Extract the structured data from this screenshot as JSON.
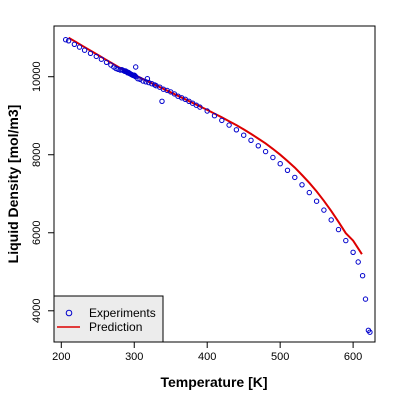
{
  "chart_data": {
    "type": "scatter",
    "xlabel": "Temperature [K]",
    "ylabel": "Liquid Density [mol/m3]",
    "xlim": [
      190,
      630
    ],
    "ylim": [
      3200,
      11300
    ],
    "x_ticks": [
      200,
      300,
      400,
      500,
      600
    ],
    "x_tick_labels": [
      "200",
      "300",
      "400",
      "500",
      "600"
    ],
    "y_ticks": [
      4000,
      6000,
      8000,
      10000
    ],
    "y_tick_labels": [
      "4000",
      "6000",
      "8000",
      "10000"
    ],
    "grid": false,
    "legend_position": "bottom-left",
    "legend": [
      {
        "label": "Experiments",
        "marker": "o",
        "color": "#0000cc"
      },
      {
        "label": "Prediction",
        "marker": "line",
        "color": "#dd0000"
      }
    ],
    "series": [
      {
        "name": "Experiments",
        "kind": "points",
        "color": "#0000cc",
        "points": [
          [
            206,
            10950
          ],
          [
            210,
            10920
          ],
          [
            218,
            10830
          ],
          [
            225,
            10760
          ],
          [
            232,
            10680
          ],
          [
            240,
            10600
          ],
          [
            248,
            10520
          ],
          [
            255,
            10450
          ],
          [
            262,
            10370
          ],
          [
            268,
            10300
          ],
          [
            272,
            10250
          ],
          [
            275,
            10210
          ],
          [
            278,
            10190
          ],
          [
            281,
            10170
          ],
          [
            283,
            10180
          ],
          [
            285,
            10160
          ],
          [
            287,
            10140
          ],
          [
            288,
            10150
          ],
          [
            289,
            10130
          ],
          [
            290,
            10120
          ],
          [
            291,
            10100
          ],
          [
            292,
            10110
          ],
          [
            293,
            10090
          ],
          [
            294,
            10080
          ],
          [
            295,
            10070
          ],
          [
            296,
            10060
          ],
          [
            297,
            10050
          ],
          [
            298,
            10040
          ],
          [
            299,
            10030
          ],
          [
            300,
            10040
          ],
          [
            301,
            10020
          ],
          [
            302,
            10000
          ],
          [
            302,
            10250
          ],
          [
            305,
            9950
          ],
          [
            308,
            9930
          ],
          [
            312,
            9890
          ],
          [
            316,
            9870
          ],
          [
            318,
            9950
          ],
          [
            320,
            9850
          ],
          [
            324,
            9820
          ],
          [
            328,
            9790
          ],
          [
            330,
            9770
          ],
          [
            335,
            9730
          ],
          [
            338,
            9370
          ],
          [
            340,
            9680
          ],
          [
            345,
            9650
          ],
          [
            350,
            9610
          ],
          [
            355,
            9560
          ],
          [
            360,
            9500
          ],
          [
            365,
            9460
          ],
          [
            370,
            9420
          ],
          [
            375,
            9370
          ],
          [
            380,
            9320
          ],
          [
            385,
            9270
          ],
          [
            390,
            9220
          ],
          [
            400,
            9120
          ],
          [
            410,
            9000
          ],
          [
            420,
            8880
          ],
          [
            430,
            8760
          ],
          [
            440,
            8640
          ],
          [
            450,
            8500
          ],
          [
            460,
            8370
          ],
          [
            470,
            8230
          ],
          [
            480,
            8080
          ],
          [
            490,
            7930
          ],
          [
            500,
            7770
          ],
          [
            510,
            7600
          ],
          [
            520,
            7420
          ],
          [
            530,
            7230
          ],
          [
            540,
            7030
          ],
          [
            550,
            6810
          ],
          [
            560,
            6580
          ],
          [
            570,
            6330
          ],
          [
            580,
            6080
          ],
          [
            590,
            5800
          ],
          [
            600,
            5500
          ],
          [
            607,
            5250
          ],
          [
            613,
            4900
          ],
          [
            617,
            4300
          ],
          [
            621,
            3500
          ],
          [
            623,
            3450
          ]
        ]
      },
      {
        "name": "Prediction",
        "kind": "line",
        "color": "#dd0000",
        "points": [
          [
            210,
            11000
          ],
          [
            220,
            10890
          ],
          [
            230,
            10780
          ],
          [
            240,
            10670
          ],
          [
            250,
            10560
          ],
          [
            260,
            10450
          ],
          [
            270,
            10340
          ],
          [
            280,
            10230
          ],
          [
            290,
            10140
          ],
          [
            300,
            10050
          ],
          [
            310,
            9960
          ],
          [
            320,
            9870
          ],
          [
            330,
            9780
          ],
          [
            340,
            9690
          ],
          [
            350,
            9600
          ],
          [
            360,
            9510
          ],
          [
            370,
            9420
          ],
          [
            380,
            9330
          ],
          [
            390,
            9240
          ],
          [
            400,
            9150
          ],
          [
            410,
            9055
          ],
          [
            420,
            8960
          ],
          [
            430,
            8860
          ],
          [
            440,
            8760
          ],
          [
            450,
            8650
          ],
          [
            460,
            8535
          ],
          [
            470,
            8415
          ],
          [
            480,
            8290
          ],
          [
            490,
            8150
          ],
          [
            500,
            8000
          ],
          [
            510,
            7840
          ],
          [
            520,
            7670
          ],
          [
            530,
            7480
          ],
          [
            540,
            7280
          ],
          [
            550,
            7060
          ],
          [
            560,
            6820
          ],
          [
            570,
            6560
          ],
          [
            580,
            6280
          ],
          [
            590,
            5990
          ],
          [
            600,
            5800
          ],
          [
            607,
            5600
          ],
          [
            612,
            5450
          ]
        ]
      }
    ]
  }
}
